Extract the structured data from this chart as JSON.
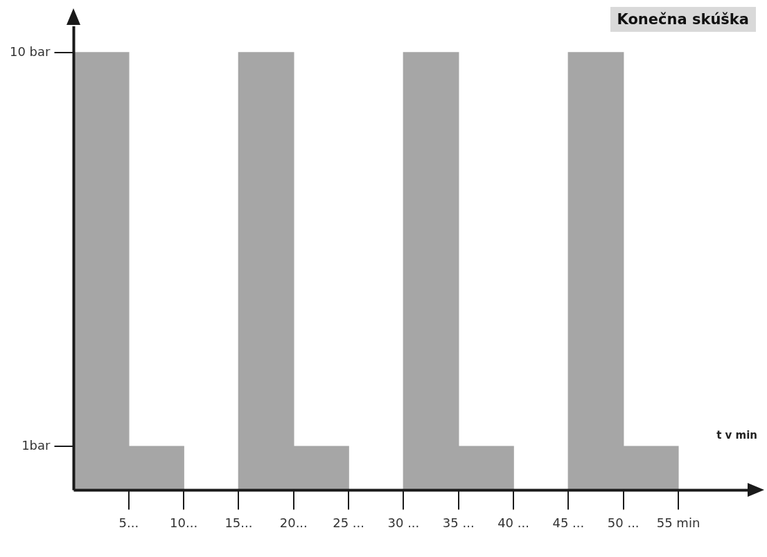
{
  "chart_data": {
    "type": "area",
    "title": "Konečna skúška",
    "xlabel": "t v min",
    "categories": [
      null,
      "5...",
      "10...",
      "15...",
      "20...",
      "25 ...",
      "30 ...",
      "35 ...",
      "40 ...",
      "45 ...",
      "50 ...",
      "55 min"
    ],
    "series": [
      {
        "color": "#a6a6a6",
        "values": [
          10,
          1,
          0,
          10,
          1,
          0,
          10,
          1,
          0,
          10,
          1,
          0
        ]
      }
    ],
    "ylim": [
      0,
      10.6
    ],
    "yticks": [
      {
        "value": 1,
        "label": "1bar"
      },
      {
        "value": 10,
        "label": "10 bar"
      }
    ],
    "grid": false,
    "legend": false
  }
}
